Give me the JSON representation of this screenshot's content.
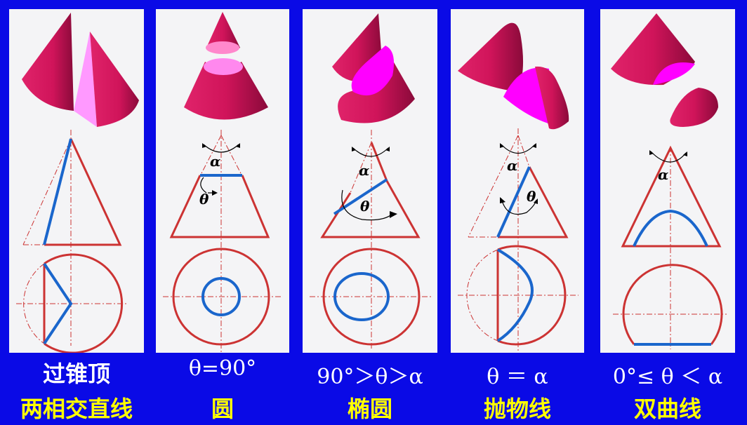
{
  "panels": [
    {
      "id": "p1",
      "line1": "过锥顶",
      "line2": "两相交直线"
    },
    {
      "id": "p2",
      "line1": "θ=90°",
      "line2": "圆"
    },
    {
      "id": "p3",
      "line1": "90°＞θ＞α",
      "line2": "椭圆"
    },
    {
      "id": "p4",
      "line1": "θ ＝ α",
      "line2": "抛物线"
    },
    {
      "id": "p5",
      "line1": "0°≤ θ ＜ α",
      "line2": "双曲线"
    }
  ],
  "symbols": {
    "alpha": "α",
    "theta": "θ"
  },
  "colors": {
    "background": "#0a0ae6",
    "panel": "#f4f4f6",
    "cone": "#d6145a",
    "section": "#ff00ff",
    "outline": "#cc3333",
    "cut_line": "#1a66cc",
    "caption_top": "#ffffff",
    "caption_bottom": "#ffff00"
  }
}
